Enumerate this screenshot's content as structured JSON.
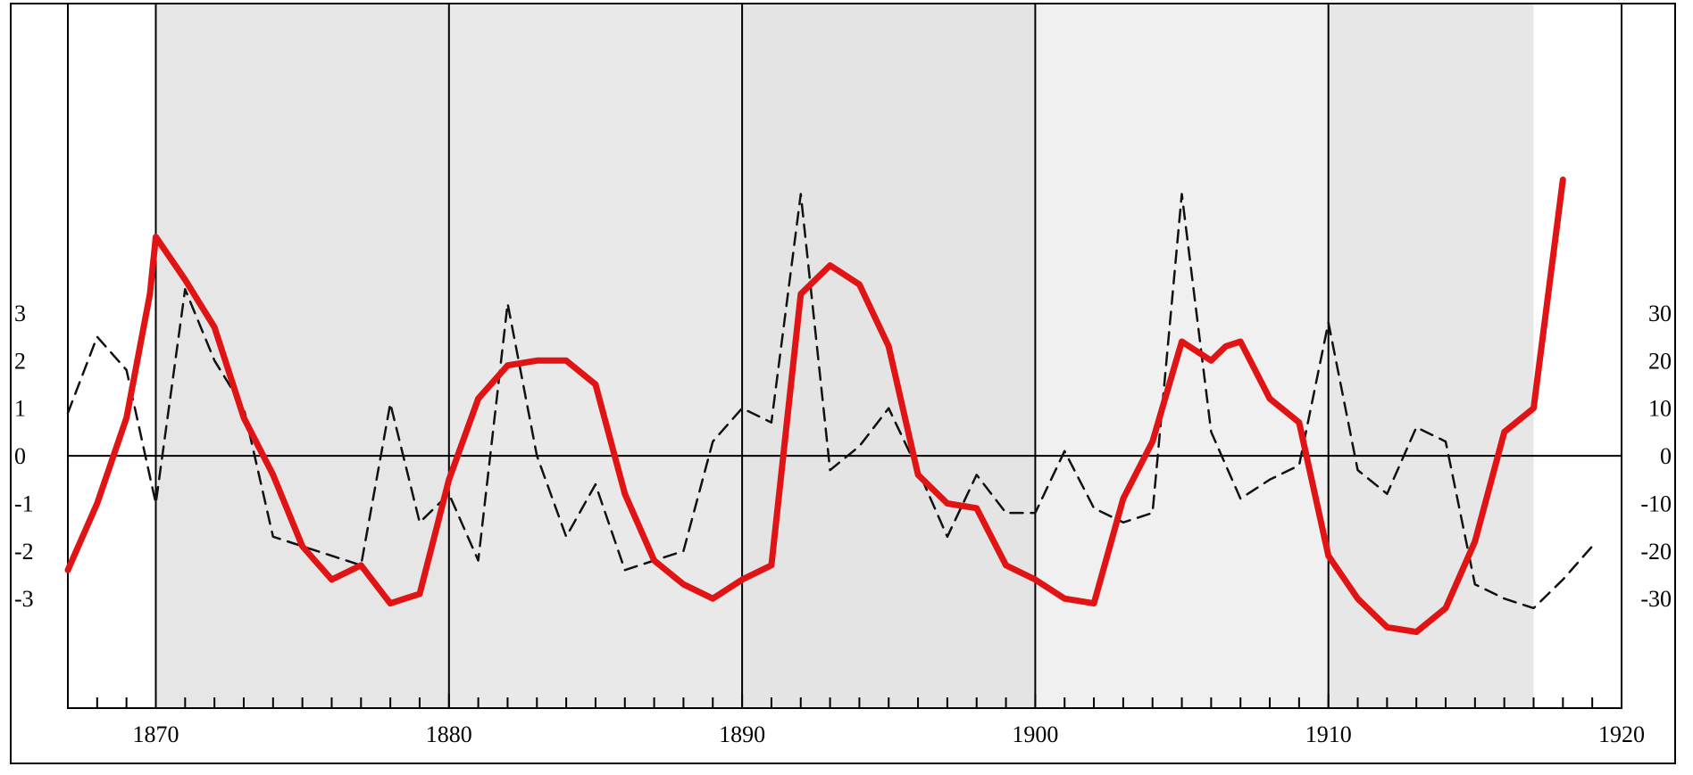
{
  "chart_data": {
    "type": "line",
    "title": "",
    "xlabel": "",
    "ylabel_left": "",
    "ylabel_right": "",
    "xlim": [
      1867,
      1920
    ],
    "x_ticks": [
      1870,
      1880,
      1890,
      1900,
      1910,
      1920
    ],
    "ylim_left": [
      -5.3,
      9.5
    ],
    "ylim_right": [
      -53,
      95
    ],
    "left_ticks": [
      3,
      2,
      1,
      0,
      -1,
      -2,
      -3
    ],
    "left_tick_labels": [
      "3",
      "2",
      "1",
      "0",
      "-1",
      "-2",
      "-3"
    ],
    "right_ticks": [
      30,
      20,
      10,
      0,
      -10,
      -20,
      -30
    ],
    "right_tick_labels": [
      "30",
      "20",
      "10",
      "0",
      "-10",
      "-20",
      "-30"
    ],
    "grid": "vertical lines at each decade",
    "shaded_bands": [
      [
        1870,
        1880
      ],
      [
        1880,
        1890
      ],
      [
        1890,
        1900
      ],
      [
        1900,
        1910
      ],
      [
        1910,
        1917
      ]
    ],
    "series": [
      {
        "axis": "left",
        "style": "solid",
        "color": "#e01414",
        "x": [
          1867,
          1868,
          1869,
          1869.8,
          1870,
          1871,
          1872,
          1873,
          1874,
          1875,
          1876,
          1877,
          1878,
          1878.5,
          1879,
          1880,
          1881,
          1882,
          1883,
          1884,
          1885,
          1886,
          1887,
          1888,
          1889,
          1890,
          1891,
          1892,
          1893,
          1894,
          1895,
          1896,
          1897,
          1898,
          1899,
          1900,
          1901,
          1902,
          1903,
          1904,
          1905,
          1906,
          1906.5,
          1907,
          1908,
          1909,
          1910,
          1911,
          1912,
          1913,
          1914,
          1915,
          1916,
          1917,
          1918
        ],
        "y": [
          -2.4,
          -1.0,
          0.8,
          3.4,
          4.6,
          3.7,
          2.7,
          0.8,
          -0.4,
          -1.9,
          -2.6,
          -2.3,
          -3.1,
          -3.0,
          -2.9,
          -0.5,
          1.2,
          1.9,
          2.0,
          2.0,
          1.5,
          -0.8,
          -2.2,
          -2.7,
          -3.0,
          -2.6,
          -2.3,
          3.4,
          4.0,
          3.6,
          2.3,
          -0.4,
          -1.0,
          -1.1,
          -2.3,
          -2.6,
          -3.0,
          -3.1,
          -0.9,
          0.3,
          2.4,
          2.0,
          2.3,
          2.4,
          1.2,
          0.7,
          -2.1,
          -3.0,
          -3.6,
          -3.7,
          -3.2,
          -1.8,
          0.5,
          1.0,
          5.8
        ]
      },
      {
        "axis": "right",
        "style": "dashed",
        "color": "#111111",
        "x": [
          1867,
          1868,
          1869,
          1870,
          1871,
          1872,
          1873,
          1874,
          1875,
          1876,
          1877,
          1878,
          1879,
          1880,
          1881,
          1882,
          1883,
          1884,
          1885,
          1886,
          1887,
          1888,
          1889,
          1890,
          1891,
          1892,
          1893,
          1894,
          1895,
          1896,
          1897,
          1898,
          1899,
          1900,
          1901,
          1902,
          1903,
          1904,
          1905,
          1906,
          1907,
          1908,
          1909,
          1910,
          1911,
          1912,
          1913,
          1914,
          1915,
          1916,
          1917,
          1918,
          1919
        ],
        "y": [
          9,
          25,
          18,
          -10,
          35,
          20,
          10,
          -17,
          -19,
          -21,
          -23,
          11,
          -14,
          -8,
          -22,
          32,
          0,
          -17,
          -6,
          -24,
          -22,
          -20,
          3,
          10,
          7,
          55,
          -3,
          2,
          10,
          -3,
          -17,
          -4,
          -12,
          -12,
          1,
          -11,
          -14,
          -12,
          55,
          5,
          -9,
          -5,
          -2,
          28,
          -3,
          -8,
          6,
          3,
          -27,
          -30,
          -32,
          -26,
          -19
        ]
      }
    ]
  }
}
